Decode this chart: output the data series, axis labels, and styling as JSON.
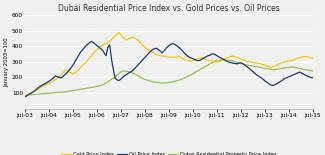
{
  "title": "Dubai Residential Price Index vs. Gold Prices vs. Oil Prices",
  "ylabel": "January 2003=100",
  "ylim": [
    0,
    600
  ],
  "yticks": [
    100,
    200,
    300,
    400,
    500,
    600
  ],
  "xtick_labels": [
    "Jul-03",
    "Jul-04",
    "Jul-05",
    "Jul-06",
    "Jul-07",
    "Jul-08",
    "Jul-09",
    "Jul-10",
    "Jul-11",
    "Jul-12",
    "Jul-13",
    "Jul-14",
    "Jul-15"
  ],
  "gold_color": "#F5C518",
  "oil_color": "#1A3A6B",
  "dubai_color": "#92C353",
  "bg_color": "#F0F0F0",
  "legend": [
    "Gold Price Index",
    "Oil Price Index",
    "Dubai Residential Property Price Index"
  ],
  "gold": [
    85,
    88,
    95,
    100,
    108,
    118,
    128,
    138,
    148,
    155,
    162,
    168,
    178,
    188,
    200,
    215,
    232,
    248,
    240,
    230,
    220,
    232,
    248,
    262,
    278,
    292,
    310,
    328,
    348,
    365,
    380,
    395,
    405,
    415,
    425,
    430,
    445,
    460,
    475,
    490,
    470,
    455,
    440,
    450,
    455,
    460,
    450,
    440,
    420,
    405,
    390,
    380,
    370,
    360,
    350,
    345,
    340,
    338,
    335,
    332,
    330,
    330,
    330,
    332,
    335,
    325,
    318,
    312,
    308,
    305,
    310,
    318,
    325,
    328,
    322,
    315,
    310,
    308,
    305,
    302,
    300,
    305,
    315,
    322,
    328,
    335,
    338,
    332,
    328,
    322,
    315,
    308,
    305,
    302,
    298,
    295,
    292,
    290,
    285,
    280,
    275,
    270,
    265,
    270,
    278,
    285,
    292,
    298,
    302,
    305,
    308,
    312,
    318,
    325,
    328,
    332,
    335,
    332,
    328,
    325
  ],
  "oil": [
    75,
    80,
    88,
    95,
    102,
    110,
    118,
    128,
    138,
    145,
    152,
    158,
    165,
    172,
    180,
    188,
    198,
    210,
    205,
    200,
    198,
    205,
    215,
    225,
    238,
    252,
    268,
    285,
    305,
    325,
    345,
    365,
    378,
    392,
    405,
    415,
    425,
    432,
    425,
    415,
    405,
    395,
    385,
    375,
    358,
    340,
    395,
    410,
    318,
    252,
    195,
    185,
    180,
    188,
    198,
    210,
    218,
    225,
    232,
    238,
    248,
    260,
    272,
    285,
    298,
    312,
    325,
    338,
    350,
    362,
    372,
    382,
    385,
    388,
    378,
    368,
    358,
    372,
    385,
    398,
    408,
    415,
    418,
    412,
    405,
    395,
    385,
    375,
    360,
    348,
    338,
    330,
    325,
    320,
    315,
    310,
    308,
    312,
    318,
    325,
    332,
    338,
    342,
    348,
    352,
    348,
    342,
    335,
    328,
    322,
    315,
    308,
    302,
    298,
    295,
    292,
    290,
    288,
    290,
    295,
    292,
    285,
    275,
    268,
    258,
    248,
    238,
    228,
    218,
    210,
    202,
    195,
    185,
    175,
    168,
    158,
    152,
    148,
    152,
    158,
    165,
    172,
    180,
    188,
    195,
    200,
    205,
    210,
    215,
    220,
    225,
    230,
    235,
    228,
    222,
    215,
    210,
    205,
    200,
    198
  ],
  "dubai": [
    85,
    86,
    87,
    88,
    89,
    90,
    91,
    92,
    93,
    94,
    95,
    96,
    97,
    98,
    99,
    100,
    101,
    102,
    103,
    104,
    105,
    106,
    107,
    108,
    110,
    112,
    114,
    116,
    118,
    120,
    122,
    124,
    126,
    128,
    130,
    132,
    134,
    136,
    138,
    140,
    142,
    145,
    148,
    152,
    158,
    165,
    172,
    180,
    188,
    196,
    204,
    215,
    225,
    235,
    240,
    242,
    240,
    238,
    235,
    232,
    228,
    222,
    215,
    208,
    200,
    195,
    190,
    186,
    182,
    178,
    175,
    172,
    170,
    168,
    166,
    165,
    164,
    164,
    165,
    166,
    168,
    170,
    172,
    175,
    178,
    182,
    186,
    190,
    195,
    200,
    206,
    212,
    218,
    225,
    232,
    238,
    245,
    252,
    258,
    265,
    272,
    278,
    285,
    292,
    298,
    305,
    308,
    310,
    312,
    314,
    315,
    314,
    312,
    310,
    308,
    305,
    302,
    298,
    295,
    292,
    288,
    285,
    282,
    280,
    278,
    276,
    274,
    272,
    270,
    268,
    265,
    262,
    260,
    258,
    256,
    254,
    252,
    250,
    250,
    252,
    254,
    256,
    258,
    260,
    262,
    264,
    265,
    266,
    267,
    265,
    263,
    260,
    258,
    255,
    252,
    250,
    248,
    246,
    244,
    242
  ]
}
